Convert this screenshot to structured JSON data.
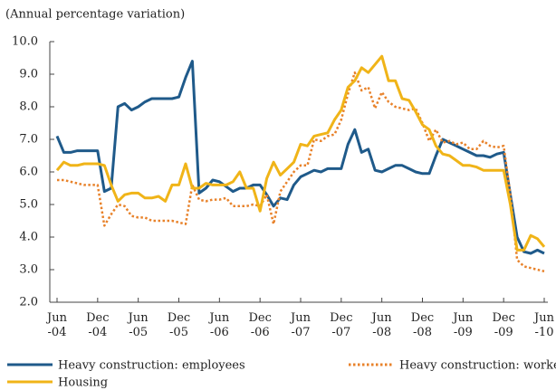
{
  "chart_data": {
    "type": "line",
    "subtitle": "(Annual percentage variation)",
    "categories": [
      "Jun\n-04",
      null,
      null,
      null,
      null,
      null,
      "Dec\n-04",
      null,
      null,
      null,
      null,
      null,
      "Jun\n-05",
      null,
      null,
      null,
      null,
      null,
      "Dec\n-05",
      null,
      null,
      null,
      null,
      null,
      "Jun\n-06",
      null,
      null,
      null,
      null,
      null,
      "Dec\n-06",
      null,
      null,
      null,
      null,
      null,
      "Jun\n-07",
      null,
      null,
      null,
      null,
      null,
      "Dec\n-07",
      null,
      null,
      null,
      null,
      null,
      "Jun\n-08",
      null,
      null,
      null,
      null,
      null,
      "Dec\n-08",
      null,
      null,
      null,
      null,
      null,
      "Jun\n-09",
      null,
      null,
      null,
      null,
      null,
      "Dec\n-09",
      null,
      null,
      null,
      null,
      null,
      "Jun\n-10"
    ],
    "series": [
      {
        "name": "Heavy construction: employees",
        "color": "#1f5a8a",
        "dash": false,
        "values": [
          7.1,
          6.6,
          6.6,
          6.65,
          6.65,
          6.65,
          6.65,
          5.4,
          5.5,
          8.0,
          8.1,
          7.9,
          8.0,
          8.15,
          8.25,
          8.25,
          8.25,
          8.25,
          8.3,
          8.9,
          9.4,
          5.35,
          5.5,
          5.75,
          5.7,
          5.55,
          5.4,
          5.5,
          5.5,
          5.6,
          5.6,
          5.3,
          4.95,
          5.2,
          5.15,
          5.6,
          5.85,
          5.95,
          6.05,
          6.0,
          6.1,
          6.1,
          6.1,
          6.85,
          7.3,
          6.6,
          6.7,
          6.05,
          6.0,
          6.1,
          6.2,
          6.2,
          6.1,
          6.0,
          5.95,
          5.95,
          6.5,
          7.0,
          6.9,
          6.8,
          6.7,
          6.6,
          6.5,
          6.5,
          6.45,
          6.55,
          6.6,
          5.3,
          4.0,
          3.55,
          3.5,
          3.6,
          3.5
        ]
      },
      {
        "name": "Heavy construction: workers",
        "color": "#e8822a",
        "dash": true,
        "values": [
          5.75,
          5.75,
          5.7,
          5.65,
          5.6,
          5.6,
          5.6,
          4.35,
          4.7,
          5.0,
          4.95,
          4.65,
          4.6,
          4.6,
          4.5,
          4.5,
          4.5,
          4.5,
          4.45,
          4.4,
          5.6,
          5.15,
          5.1,
          5.15,
          5.15,
          5.2,
          4.95,
          4.95,
          4.95,
          5.0,
          4.95,
          5.3,
          4.4,
          5.4,
          5.7,
          6.0,
          6.2,
          6.2,
          7.0,
          6.95,
          7.1,
          7.15,
          7.6,
          8.4,
          9.05,
          8.5,
          8.6,
          7.95,
          8.45,
          8.15,
          8.0,
          7.95,
          7.9,
          7.95,
          7.5,
          6.95,
          7.3,
          6.9,
          6.95,
          6.85,
          6.9,
          6.7,
          6.7,
          6.95,
          6.8,
          6.75,
          6.8,
          5.3,
          3.3,
          3.1,
          3.05,
          3.0,
          2.95
        ]
      },
      {
        "name": "Housing",
        "color": "#f0b418",
        "dash": false,
        "values": [
          6.05,
          6.3,
          6.2,
          6.2,
          6.25,
          6.25,
          6.25,
          6.2,
          5.6,
          5.1,
          5.3,
          5.35,
          5.35,
          5.2,
          5.2,
          5.25,
          5.1,
          5.6,
          5.6,
          6.25,
          5.5,
          5.5,
          5.65,
          5.6,
          5.6,
          5.6,
          5.7,
          6.0,
          5.5,
          5.5,
          4.8,
          5.8,
          6.3,
          5.9,
          6.1,
          6.3,
          6.85,
          6.8,
          7.1,
          7.15,
          7.2,
          7.6,
          7.9,
          8.6,
          8.8,
          9.2,
          9.05,
          9.3,
          9.55,
          8.8,
          8.8,
          8.25,
          8.2,
          7.85,
          7.45,
          7.3,
          6.8,
          6.55,
          6.5,
          6.35,
          6.2,
          6.2,
          6.15,
          6.05,
          6.05,
          6.05,
          6.05,
          5.0,
          3.6,
          3.6,
          4.05,
          3.95,
          3.7
        ]
      }
    ],
    "ylim": [
      2,
      10
    ],
    "yticks": [
      {
        "value": 2,
        "label": "2.0"
      },
      {
        "value": 3,
        "label": "3.0"
      },
      {
        "value": 4,
        "label": "4.0"
      },
      {
        "value": 5,
        "label": "5.0"
      },
      {
        "value": 6,
        "label": "6.0"
      },
      {
        "value": 7,
        "label": "7.0"
      },
      {
        "value": 8,
        "label": "8.0"
      },
      {
        "value": 9,
        "label": "9.0"
      },
      {
        "value": 10,
        "label": "10.0"
      }
    ],
    "grid": false
  }
}
